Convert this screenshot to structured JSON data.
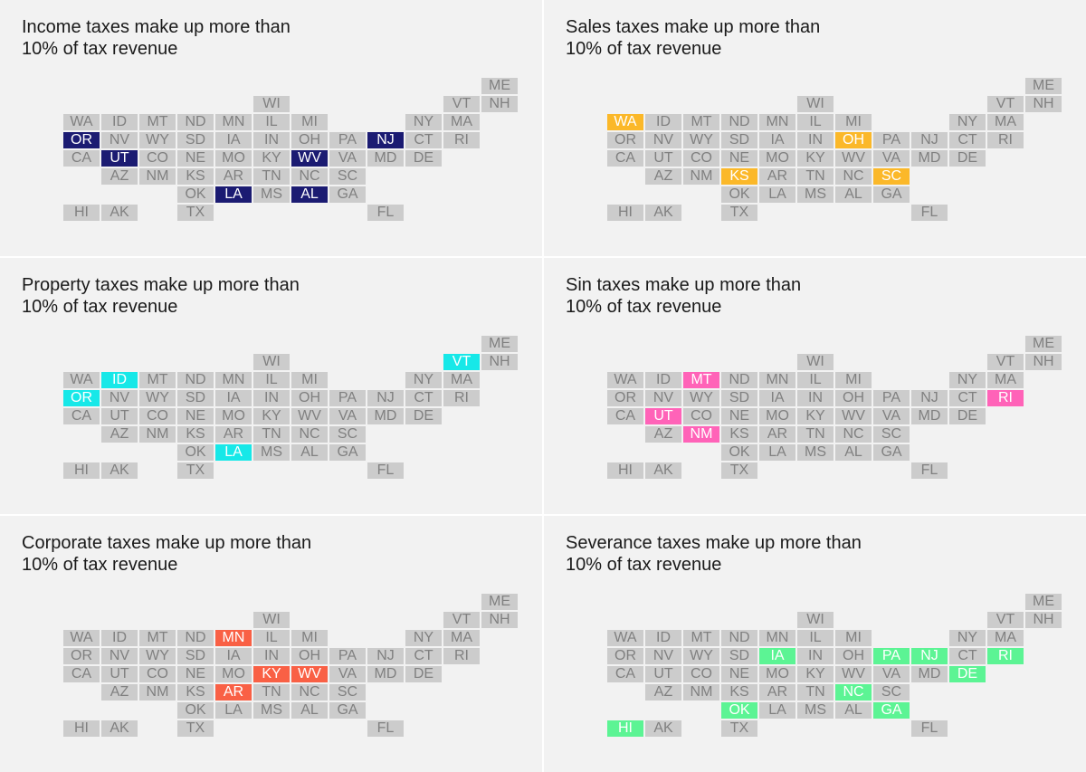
{
  "colors": {
    "panel_background": "#f2f2f2",
    "tile_default": "#cccccc",
    "tile_text_default": "#808080",
    "tile_text_highlight": "#ffffff"
  },
  "states": [
    "ME",
    "WI",
    "VT",
    "NH",
    "WA",
    "ID",
    "MT",
    "ND",
    "MN",
    "IL",
    "MI",
    "NY",
    "MA",
    "OR",
    "NV",
    "WY",
    "SD",
    "IA",
    "IN",
    "OH",
    "PA",
    "NJ",
    "CT",
    "RI",
    "CA",
    "UT",
    "CO",
    "NE",
    "MO",
    "KY",
    "WV",
    "VA",
    "MD",
    "DE",
    "AZ",
    "NM",
    "KS",
    "AR",
    "TN",
    "NC",
    "SC",
    "OK",
    "LA",
    "MS",
    "AL",
    "GA",
    "HI",
    "AK",
    "TX",
    "FL"
  ],
  "panels": [
    {
      "title_line1": "Income taxes make up more than",
      "title_line2": "10% of tax revenue",
      "highlight_color": "#1b1b72",
      "highlighted": [
        "OR",
        "NJ",
        "UT",
        "WV",
        "LA",
        "AL"
      ]
    },
    {
      "title_line1": "Sales taxes make up more than",
      "title_line2": "10% of tax revenue",
      "highlight_color": "#fbb829",
      "highlighted": [
        "WA",
        "OH",
        "KS",
        "SC"
      ]
    },
    {
      "title_line1": "Property taxes make up more than",
      "title_line2": "10% of tax revenue",
      "highlight_color": "#17e8e8",
      "highlighted": [
        "VT",
        "ID",
        "OR",
        "LA"
      ]
    },
    {
      "title_line1": "Sin taxes make up more than",
      "title_line2": "10% of tax revenue",
      "highlight_color": "#ff63b8",
      "highlighted": [
        "MT",
        "RI",
        "UT",
        "NM"
      ]
    },
    {
      "title_line1": "Corporate taxes make up more than",
      "title_line2": "10% of tax revenue",
      "highlight_color": "#f96045",
      "highlighted": [
        "MN",
        "KY",
        "WV",
        "AR"
      ]
    },
    {
      "title_line1": "Severance taxes make up more than",
      "title_line2": "10% of tax revenue",
      "highlight_color": "#5cf494",
      "highlighted": [
        "IA",
        "PA",
        "NJ",
        "RI",
        "DE",
        "NC",
        "OK",
        "GA",
        "HI"
      ]
    }
  ]
}
